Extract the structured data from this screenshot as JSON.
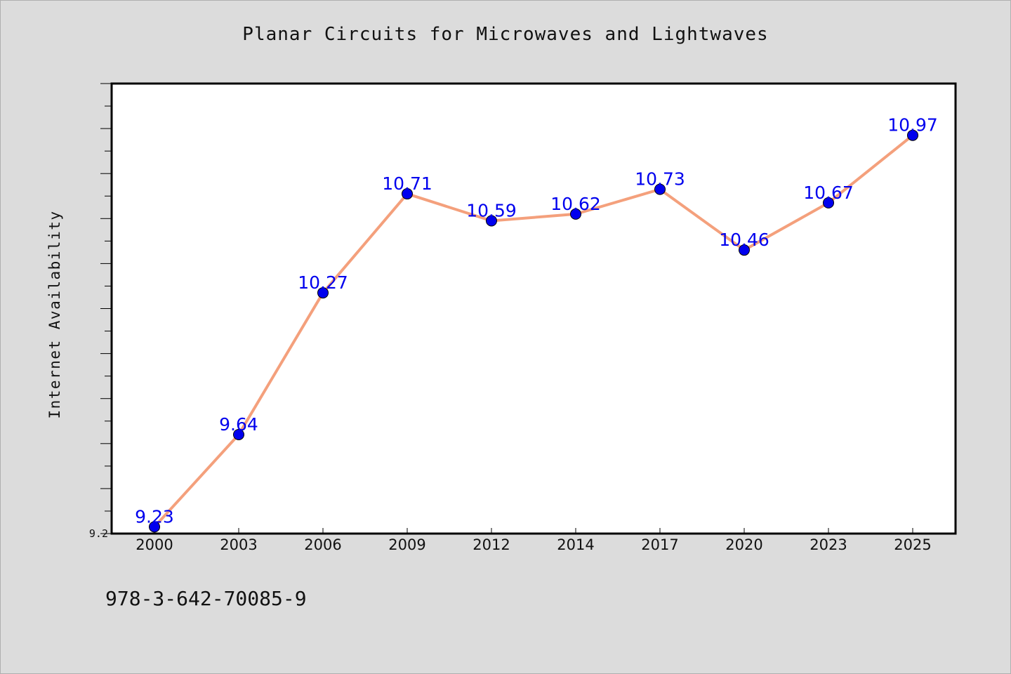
{
  "chart_data": {
    "type": "line",
    "title": "Planar Circuits for Microwaves and Lightwaves",
    "xlabel": "",
    "ylabel": "Internet Availability",
    "x": [
      "2000",
      "2003",
      "2006",
      "2009",
      "2012",
      "2014",
      "2017",
      "2020",
      "2023",
      "2025"
    ],
    "series": [
      {
        "values": [
          9.23,
          9.64,
          10.27,
          10.71,
          10.59,
          10.62,
          10.73,
          10.46,
          10.67,
          10.97
        ]
      }
    ],
    "ylim": [
      9.2,
      11.2
    ],
    "yticks_labeled": [
      "9.2"
    ],
    "grid": false,
    "legend": "none",
    "colors": {
      "line": "#f4a07c",
      "marker": "#0000ee",
      "data_label": "#0000ee",
      "plot_background": "#ffffff",
      "figure_background": "#dcdcdc"
    }
  },
  "caption": "978-3-642-70085-9"
}
